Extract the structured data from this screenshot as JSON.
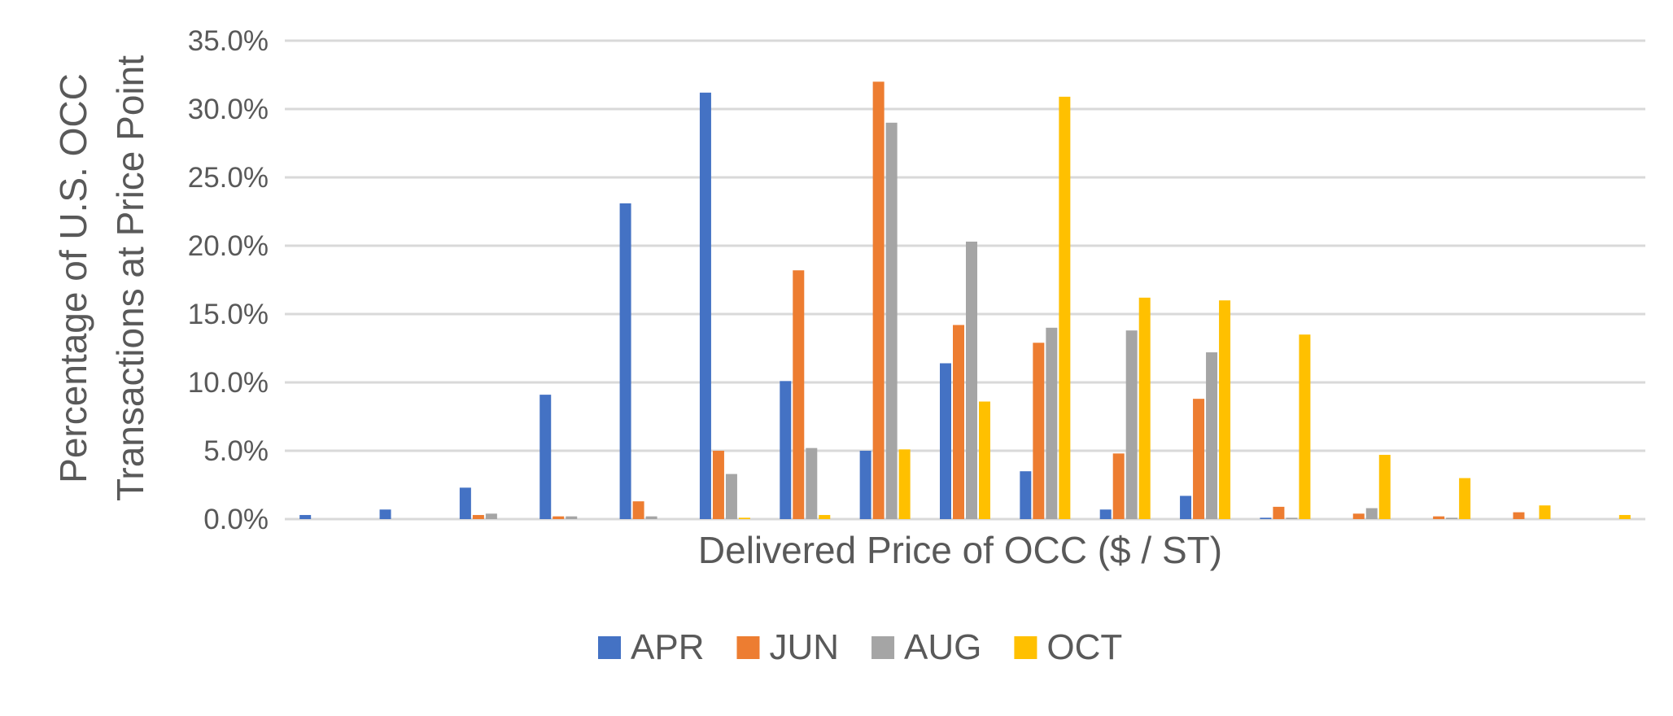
{
  "chart_data": {
    "type": "bar",
    "title": "",
    "xlabel": "Delivered Price of OCC ($ / ST)",
    "ylabel_lines": [
      "Percentage of U.S. OCC",
      "Transactions at Price Point"
    ],
    "categories": [
      "",
      "",
      "",
      "",
      "",
      "",
      "",
      "",
      "",
      "",
      "",
      "",
      "",
      "",
      "",
      "",
      ""
    ],
    "ylim": [
      0,
      35
    ],
    "y_ticks": [
      "0.0%",
      "5.0%",
      "10.0%",
      "15.0%",
      "20.0%",
      "25.0%",
      "30.0%",
      "35.0%"
    ],
    "y_tick_values": [
      0,
      5,
      10,
      15,
      20,
      25,
      30,
      35
    ],
    "grid": true,
    "legend_position": "bottom",
    "series": [
      {
        "name": "APR",
        "color": "#4472C4",
        "values": [
          0.3,
          0.7,
          2.3,
          9.1,
          23.1,
          31.2,
          10.1,
          5.0,
          11.4,
          3.5,
          0.7,
          1.7,
          0.1,
          0,
          0,
          0,
          0
        ]
      },
      {
        "name": "JUN",
        "color": "#ED7D31",
        "values": [
          0,
          0,
          0.3,
          0.2,
          1.3,
          5.0,
          18.2,
          32.0,
          14.2,
          12.9,
          4.8,
          8.8,
          0.9,
          0.4,
          0.2,
          0.5,
          0
        ]
      },
      {
        "name": "AUG",
        "color": "#A5A5A5",
        "values": [
          0,
          0,
          0.4,
          0.2,
          0.2,
          3.3,
          5.2,
          29.0,
          20.3,
          14.0,
          13.8,
          12.2,
          0.1,
          0.8,
          0.1,
          0,
          0
        ]
      },
      {
        "name": "OCT",
        "color": "#FFC000",
        "values": [
          0,
          0,
          0,
          0,
          0,
          0.1,
          0.3,
          5.1,
          8.6,
          30.9,
          16.2,
          16.0,
          13.5,
          4.7,
          3.0,
          1.0,
          0.3
        ]
      }
    ]
  }
}
